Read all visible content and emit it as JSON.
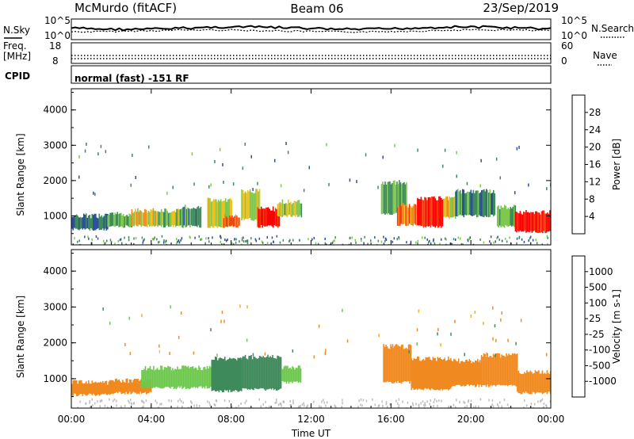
{
  "header": {
    "station": "McMurdo (fitACF)",
    "beam": "Beam 06",
    "date": "23/Sep/2019"
  },
  "top_panels": {
    "nsky_label": "N.Sky",
    "nsky_ticks": [
      "10^5",
      "10^0"
    ],
    "nsearch_label": "N.Search",
    "nsearch_ticks": [
      "10^5",
      "10^0"
    ],
    "freq_label": "Freq.",
    "freq_unit": "[MHz]",
    "freq_ticks": [
      "18",
      "8"
    ],
    "nave_label": "Nave",
    "nave_ticks": [
      "60",
      "0"
    ],
    "cpid_label": "CPID",
    "cpid_text": "normal (fast) -151 RF"
  },
  "colors": {
    "power_scale": [
      "#0000ff",
      "#2c4f9e",
      "#3f8a5a",
      "#7ec850",
      "#f0c020",
      "#f08a20",
      "#f04010",
      "#ff0000"
    ],
    "velocity_scale": [
      "#ff0000",
      "#f06010",
      "#f08a20",
      "#f0b020",
      "#c8c8c8",
      "#6cc84c",
      "#3f8a5a",
      "#2c4f9e",
      "#0000ff"
    ],
    "ground_scatter": "#bdbdbd"
  },
  "chart_data": [
    {
      "type": "heatmap",
      "title": "",
      "xlabel": "Time UT",
      "ylabel": "Slant Range [km]",
      "x_ticks": [
        "00:00",
        "04:00",
        "08:00",
        "12:00",
        "16:00",
        "20:00",
        "00:00"
      ],
      "y_ticks": [
        "1000",
        "2000",
        "3000",
        "4000"
      ],
      "xlim": [
        0,
        24
      ],
      "ylim": [
        180,
        4600
      ],
      "colorbar": {
        "label": "Power [dB]",
        "ticks": [
          "4",
          "8",
          "12",
          "16",
          "20",
          "24",
          "28"
        ],
        "range": [
          0,
          32
        ]
      },
      "regions": [
        {
          "t0": 0.0,
          "t1": 1.8,
          "r0": 620,
          "r1": 1000,
          "value": 8
        },
        {
          "t0": 1.8,
          "t1": 3.0,
          "r0": 700,
          "r1": 1050,
          "value": 12
        },
        {
          "t0": 3.0,
          "t1": 4.3,
          "r0": 720,
          "r1": 1150,
          "value": 18
        },
        {
          "t0": 4.3,
          "t1": 5.5,
          "r0": 700,
          "r1": 1150,
          "value": 14
        },
        {
          "t0": 5.5,
          "t1": 6.5,
          "r0": 700,
          "r1": 1250,
          "value": 10
        },
        {
          "t0": 6.8,
          "t1": 8.0,
          "r0": 680,
          "r1": 1450,
          "value": 16
        },
        {
          "t0": 7.6,
          "t1": 8.4,
          "r0": 700,
          "r1": 1000,
          "value": 24
        },
        {
          "t0": 8.5,
          "t1": 9.4,
          "r0": 900,
          "r1": 1700,
          "value": 16
        },
        {
          "t0": 9.3,
          "t1": 10.4,
          "r0": 700,
          "r1": 1200,
          "value": 28
        },
        {
          "t0": 10.3,
          "t1": 11.5,
          "r0": 1000,
          "r1": 1400,
          "value": 14
        },
        {
          "t0": 15.5,
          "t1": 16.8,
          "r0": 1050,
          "r1": 1950,
          "value": 12
        },
        {
          "t0": 16.3,
          "t1": 17.3,
          "r0": 750,
          "r1": 1300,
          "value": 22
        },
        {
          "t0": 17.3,
          "t1": 18.6,
          "r0": 700,
          "r1": 1500,
          "value": 28
        },
        {
          "t0": 18.6,
          "t1": 19.2,
          "r0": 950,
          "r1": 1500,
          "value": 18
        },
        {
          "t0": 19.2,
          "t1": 21.2,
          "r0": 1000,
          "r1": 1700,
          "value": 10
        },
        {
          "t0": 21.3,
          "t1": 22.2,
          "r0": 700,
          "r1": 1250,
          "value": 12
        },
        {
          "t0": 22.2,
          "t1": 24.0,
          "r0": 550,
          "r1": 1100,
          "value": 28
        }
      ]
    },
    {
      "type": "heatmap",
      "title": "",
      "xlabel": "Time UT",
      "ylabel": "Slant Range [km]",
      "x_ticks": [
        "00:00",
        "04:00",
        "08:00",
        "12:00",
        "16:00",
        "20:00",
        "00:00"
      ],
      "y_ticks": [
        "1000",
        "2000",
        "3000",
        "4000"
      ],
      "xlim": [
        0,
        24
      ],
      "ylim": [
        180,
        4600
      ],
      "colorbar": {
        "label": "Velocity [m s-1]",
        "ticks": [
          "-1000",
          "-500",
          "-100",
          "-25",
          "25",
          "100",
          "500",
          "1000"
        ],
        "bins": [
          -2000,
          -1000,
          -500,
          -100,
          -25,
          25,
          100,
          500,
          1000,
          2000
        ]
      },
      "regions": [
        {
          "t0": 0.0,
          "t1": 2.0,
          "r0": 550,
          "r1": 900,
          "value": -150
        },
        {
          "t0": 2.0,
          "t1": 4.0,
          "r0": 600,
          "r1": 950,
          "value": -400
        },
        {
          "t0": 3.5,
          "t1": 7.0,
          "r0": 750,
          "r1": 1300,
          "value": 60
        },
        {
          "t0": 7.0,
          "t1": 8.5,
          "r0": 650,
          "r1": 1550,
          "value": 300
        },
        {
          "t0": 8.5,
          "t1": 10.5,
          "r0": 700,
          "r1": 1600,
          "value": 200
        },
        {
          "t0": 10.5,
          "t1": 11.5,
          "r0": 900,
          "r1": 1300,
          "value": 60
        },
        {
          "t0": 15.6,
          "t1": 17.0,
          "r0": 900,
          "r1": 1900,
          "value": -150
        },
        {
          "t0": 17.0,
          "t1": 19.0,
          "r0": 700,
          "r1": 1550,
          "value": -200
        },
        {
          "t0": 19.0,
          "t1": 20.5,
          "r0": 800,
          "r1": 1500,
          "value": -120
        },
        {
          "t0": 20.5,
          "t1": 22.3,
          "r0": 800,
          "r1": 1650,
          "value": -150
        },
        {
          "t0": 22.3,
          "t1": 24.0,
          "r0": 600,
          "r1": 1200,
          "value": -300
        }
      ]
    }
  ]
}
